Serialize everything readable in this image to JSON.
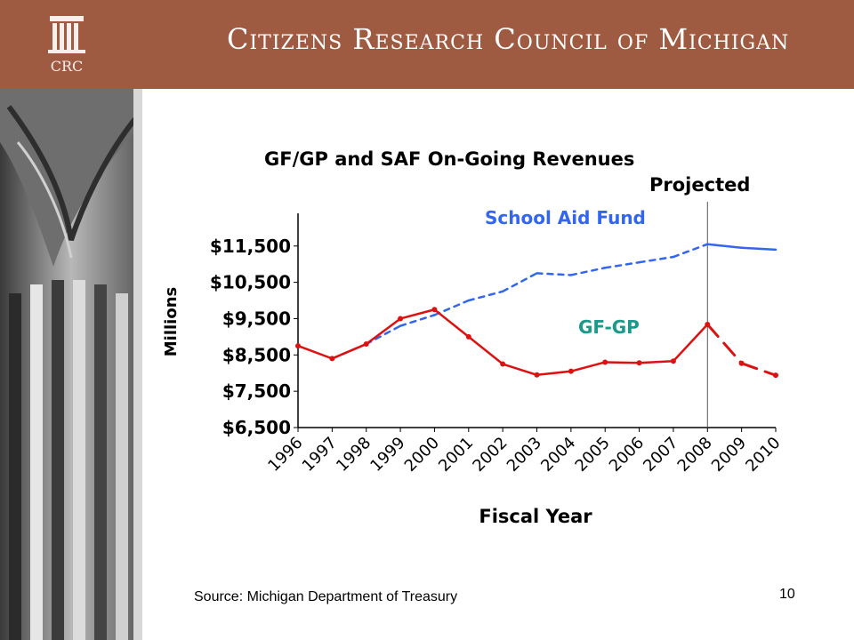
{
  "header": {
    "org_name": "Citizens Research Council of Michigan",
    "logo_text": "CRC",
    "color": "#9e5b42"
  },
  "footer": {
    "source": "Source: Michigan Department of Treasury",
    "page_number": "10"
  },
  "chart_data": {
    "type": "line",
    "title": "GF/GP and SAF On-Going Revenues",
    "xlabel": "Fiscal Year",
    "ylabel": "Millions",
    "projected_label": "Projected",
    "projection_start": "2008",
    "categories": [
      "1996",
      "1997",
      "1998",
      "1999",
      "2000",
      "2001",
      "2002",
      "2003",
      "2004",
      "2005",
      "2006",
      "2007",
      "2008",
      "2009",
      "2010"
    ],
    "yticks": [
      "$6,500",
      "$7,500",
      "$8,500",
      "$9,500",
      "$10,500",
      "$11,500"
    ],
    "ylim": [
      6500,
      12400
    ],
    "grid": false,
    "series": [
      {
        "name": "School Aid Fund",
        "color": "#3366ee",
        "values": [
          null,
          8400,
          8800,
          9300,
          9600,
          10000,
          10250,
          10750,
          10700,
          10900,
          11050,
          11200,
          11550,
          11450,
          11400
        ]
      },
      {
        "name": "GF-GP",
        "color": "#dd1111",
        "values": [
          8750,
          8400,
          8800,
          9500,
          9750,
          9000,
          8250,
          7950,
          8050,
          8300,
          8280,
          8330,
          9340,
          8270,
          7940
        ]
      }
    ]
  }
}
